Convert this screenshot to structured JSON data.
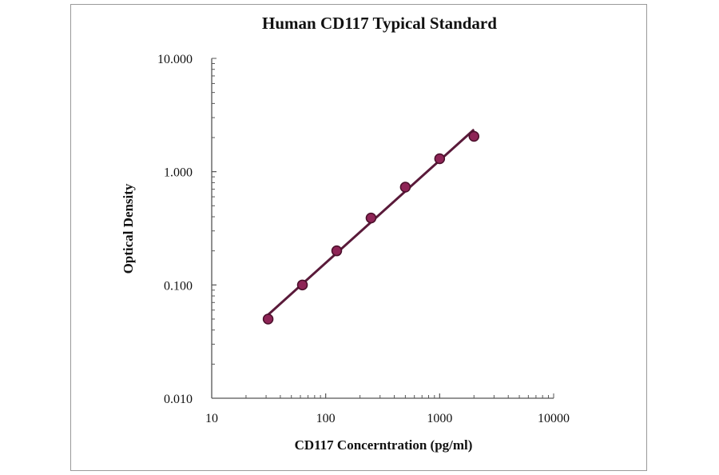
{
  "chart_data": {
    "type": "scatter",
    "title": "Human CD117 Typical Standard",
    "xlabel": "CD117 Concerntration (pg/ml)",
    "ylabel": "Optical Density",
    "x_scale": "log",
    "y_scale": "log",
    "xlim": [
      10,
      10000
    ],
    "ylim": [
      0.01,
      10
    ],
    "x_ticks": [
      "10",
      "100",
      "1000",
      "10000"
    ],
    "y_ticks": [
      "0.010",
      "0.100",
      "1.000",
      "10.000"
    ],
    "grid": false,
    "legend": "none",
    "trendline": "power fit",
    "colors": {
      "marker": "#8e2456",
      "marker_edge": "#4a0f2a",
      "line": "#5a1a3a"
    },
    "x": [
      31.25,
      62.5,
      125,
      250,
      500,
      1000,
      2000
    ],
    "y": [
      0.05,
      0.1,
      0.2,
      0.39,
      0.73,
      1.3,
      2.05
    ]
  }
}
